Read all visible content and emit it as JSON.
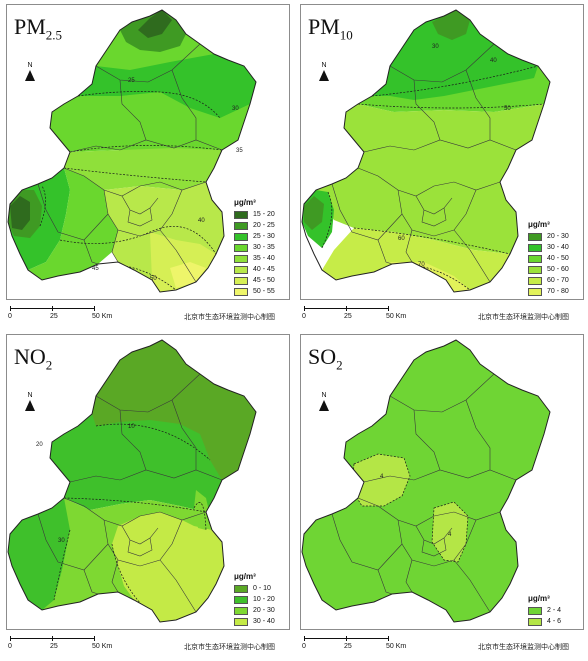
{
  "credit_text": "北京市生态环境监测中心制图",
  "north_label": "N",
  "scale": {
    "ticks": [
      "0",
      "25",
      "50 Km"
    ]
  },
  "panels": [
    {
      "id": "pm25",
      "title_main": "PM",
      "title_sub": "2.5",
      "unit": "μg/m³",
      "legend": [
        {
          "label": "15 - 20",
          "color": "#2f6b1e"
        },
        {
          "label": "20 - 25",
          "color": "#3f9a23"
        },
        {
          "label": "25 - 30",
          "color": "#34c22a"
        },
        {
          "label": "30 - 35",
          "color": "#6ad72e"
        },
        {
          "label": "35 - 40",
          "color": "#8fe03a"
        },
        {
          "label": "40 - 45",
          "color": "#b8e84a"
        },
        {
          "label": "45 - 50",
          "color": "#d6ef55"
        },
        {
          "label": "50 - 55",
          "color": "#eef56a"
        }
      ],
      "contour_labels": [
        "25",
        "30",
        "35",
        "40",
        "45",
        "50"
      ]
    },
    {
      "id": "pm10",
      "title_main": "PM",
      "title_sub": "10",
      "unit": "μg/m³",
      "legend": [
        {
          "label": "20 - 30",
          "color": "#3f9a23"
        },
        {
          "label": "30 - 40",
          "color": "#34c22a"
        },
        {
          "label": "40 - 50",
          "color": "#6ad72e"
        },
        {
          "label": "50 - 60",
          "color": "#9be23a"
        },
        {
          "label": "60 - 70",
          "color": "#c6ec48"
        },
        {
          "label": "70 - 80",
          "color": "#e2f25a"
        }
      ],
      "contour_labels": [
        "30",
        "40",
        "50",
        "60",
        "70"
      ]
    },
    {
      "id": "no2",
      "title_main": "NO",
      "title_sub": "2",
      "unit": "μg/m³",
      "legend": [
        {
          "label": "0 - 10",
          "color": "#5aa825"
        },
        {
          "label": "10 - 20",
          "color": "#3fc02b"
        },
        {
          "label": "20 - 30",
          "color": "#7ed832"
        },
        {
          "label": "30 - 40",
          "color": "#c4ea46"
        }
      ],
      "contour_labels": [
        "10",
        "20",
        "30"
      ]
    },
    {
      "id": "so2",
      "title_main": "SO",
      "title_sub": "2",
      "unit": "μg/m³",
      "legend": [
        {
          "label": "2 - 4",
          "color": "#6fd534"
        },
        {
          "label": "4 - 6",
          "color": "#b4e646"
        }
      ],
      "contour_labels": [
        "4",
        "4"
      ]
    }
  ]
}
